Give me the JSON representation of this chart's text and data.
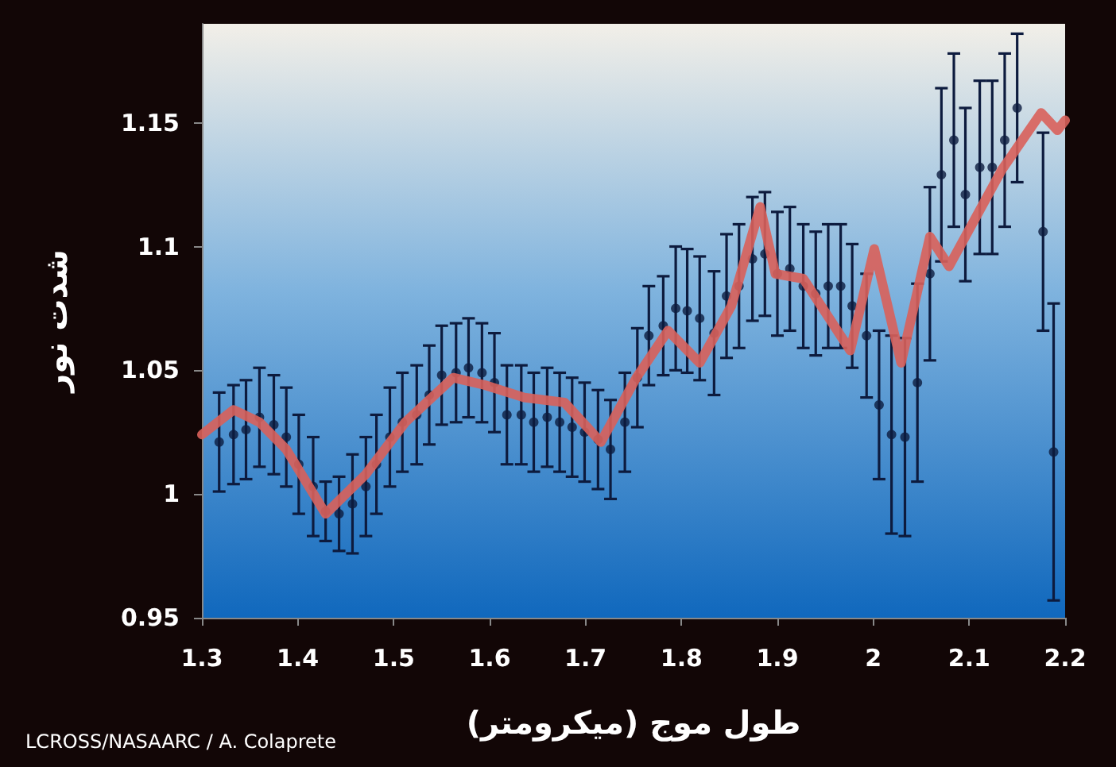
{
  "chart_data": {
    "type": "scatter",
    "xlabel": "طول موج (میکرومتر)",
    "ylabel": "شدت نور",
    "annotations": [
      "LCROSS/NASAARC / A. Colaprete"
    ],
    "xlim": [
      1.3,
      2.2
    ],
    "xticks": [
      1.3,
      1.4,
      1.5,
      1.6,
      1.7,
      1.8,
      1.9,
      2,
      2.1,
      2.2
    ],
    "ylim": [
      0.95,
      1.19
    ],
    "yticks": [
      0.95,
      1,
      1.05,
      1.1,
      1.15
    ],
    "grid": false,
    "series": [
      {
        "marker": "circle",
        "color": "#0d1b3e",
        "x": [
          1.318,
          1.333,
          1.346,
          1.36,
          1.375,
          1.388,
          1.401,
          1.416,
          1.429,
          1.443,
          1.457,
          1.471,
          1.482,
          1.496,
          1.509,
          1.524,
          1.537,
          1.55,
          1.565,
          1.578,
          1.592,
          1.605,
          1.618,
          1.633,
          1.646,
          1.66,
          1.673,
          1.686,
          1.699,
          1.713,
          1.726,
          1.741,
          1.754,
          1.766,
          1.781,
          1.794,
          1.806,
          1.819,
          1.834,
          1.847,
          1.86,
          1.874,
          1.887,
          1.9,
          1.913,
          1.927,
          1.94,
          1.953,
          1.966,
          1.978,
          1.993,
          2.006,
          2.019,
          2.033,
          2.046,
          2.059,
          2.071,
          2.084,
          2.096,
          2.111,
          2.124,
          2.137,
          2.15,
          2.177,
          2.188
        ],
        "values": [
          1.021,
          1.024,
          1.026,
          1.031,
          1.028,
          1.023,
          1.012,
          1.003,
          0.993,
          0.992,
          0.996,
          1.003,
          1.012,
          1.023,
          1.029,
          1.032,
          1.04,
          1.048,
          1.049,
          1.051,
          1.049,
          1.045,
          1.032,
          1.032,
          1.029,
          1.031,
          1.029,
          1.027,
          1.025,
          1.022,
          1.018,
          1.029,
          1.047,
          1.064,
          1.068,
          1.075,
          1.074,
          1.071,
          1.065,
          1.08,
          1.084,
          1.095,
          1.097,
          1.089,
          1.091,
          1.084,
          1.081,
          1.084,
          1.084,
          1.076,
          1.064,
          1.036,
          1.024,
          1.023,
          1.045,
          1.089,
          1.129,
          1.143,
          1.121,
          1.132,
          1.132,
          1.143,
          1.156,
          1.106,
          1.017
        ],
        "errors": [
          0.02,
          0.02,
          0.02,
          0.02,
          0.02,
          0.02,
          0.02,
          0.02,
          0.012,
          0.015,
          0.02,
          0.02,
          0.02,
          0.02,
          0.02,
          0.02,
          0.02,
          0.02,
          0.02,
          0.02,
          0.02,
          0.02,
          0.02,
          0.02,
          0.02,
          0.02,
          0.02,
          0.02,
          0.02,
          0.02,
          0.02,
          0.02,
          0.02,
          0.02,
          0.02,
          0.025,
          0.025,
          0.025,
          0.025,
          0.025,
          0.025,
          0.025,
          0.025,
          0.025,
          0.025,
          0.025,
          0.025,
          0.025,
          0.025,
          0.025,
          0.025,
          0.03,
          0.04,
          0.04,
          0.04,
          0.035,
          0.035,
          0.035,
          0.035,
          0.035,
          0.035,
          0.035,
          0.03,
          0.04,
          0.06
        ]
      },
      {
        "type": "line",
        "marker": "none",
        "color": "#d9605a",
        "x": [
          1.3,
          1.333,
          1.36,
          1.388,
          1.429,
          1.471,
          1.512,
          1.562,
          1.595,
          1.636,
          1.678,
          1.716,
          1.753,
          1.786,
          1.819,
          1.852,
          1.882,
          1.898,
          1.927,
          1.976,
          2.001,
          2.029,
          2.059,
          2.079,
          2.134,
          2.175,
          2.192,
          2.2
        ],
        "values": [
          1.024,
          1.034,
          1.029,
          1.018,
          0.992,
          1.008,
          1.029,
          1.047,
          1.044,
          1.039,
          1.037,
          1.021,
          1.047,
          1.066,
          1.053,
          1.076,
          1.116,
          1.089,
          1.087,
          1.058,
          1.099,
          1.053,
          1.104,
          1.092,
          1.131,
          1.154,
          1.147,
          1.151
        ]
      }
    ]
  }
}
